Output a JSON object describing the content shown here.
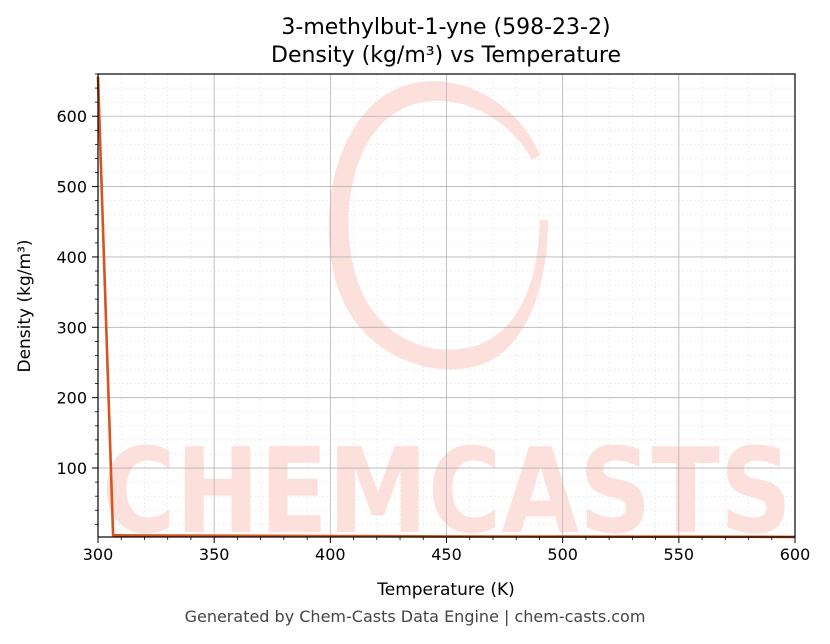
{
  "chart_data": {
    "type": "line",
    "title": "3-methylbut-1-yne (598-23-2)",
    "subtitle": "Density (kg/m³) vs Temperature",
    "xlabel": "Temperature (K)",
    "ylabel": "Density (kg/m³)",
    "xlim": [
      300,
      600
    ],
    "ylim": [
      2,
      660
    ],
    "x_ticks": [
      300,
      350,
      400,
      450,
      500,
      550,
      600
    ],
    "y_ticks": [
      100,
      200,
      300,
      400,
      500,
      600
    ],
    "grid": true,
    "series": [
      {
        "color": "#d9531e",
        "x": [
          300,
          306.5,
          310,
          350,
          400,
          450,
          500,
          550,
          600
        ],
        "y": [
          656,
          4.5,
          4.3,
          3.8,
          3.3,
          2.9,
          2.6,
          2.4,
          2.2
        ]
      }
    ]
  },
  "watermark": {
    "text": "CHEMCASTS",
    "color": "#fde0db"
  },
  "footer": "Generated by Chem-Casts Data Engine | chem-casts.com"
}
